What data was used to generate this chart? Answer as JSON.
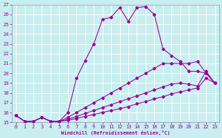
{
  "xlabel": "Windchill (Refroidissement éolien,°C)",
  "bg_color": "#c8eef0",
  "line_color": "#990099",
  "grid_color": "#ffffff",
  "xlim": [
    -0.5,
    23.5
  ],
  "ylim": [
    15,
    27
  ],
  "xticks": [
    0,
    1,
    2,
    3,
    4,
    5,
    6,
    7,
    8,
    9,
    10,
    11,
    12,
    13,
    14,
    15,
    16,
    17,
    18,
    19,
    20,
    21,
    22,
    23
  ],
  "yticks": [
    15,
    16,
    17,
    18,
    19,
    20,
    21,
    22,
    23,
    24,
    25,
    26,
    27
  ],
  "lines": [
    {
      "x": [
        0,
        1,
        2,
        3,
        4,
        5,
        6,
        7,
        8,
        9,
        10,
        11,
        12,
        13,
        14,
        15,
        16,
        17,
        18,
        19,
        20,
        21,
        22,
        23
      ],
      "y": [
        15.7,
        15.1,
        15.1,
        15.5,
        15.1,
        15.1,
        16.0,
        19.5,
        21.3,
        23.0,
        25.5,
        25.7,
        26.7,
        25.3,
        26.7,
        26.8,
        26.0,
        22.5,
        21.8,
        21.2,
        20.2,
        20.2,
        20.0,
        19.0
      ]
    },
    {
      "x": [
        0,
        1,
        2,
        3,
        4,
        5,
        6,
        7,
        8,
        9,
        10,
        11,
        12,
        13,
        14,
        15,
        16,
        17,
        18,
        19,
        20,
        21,
        22,
        23
      ],
      "y": [
        15.7,
        15.1,
        15.1,
        15.5,
        15.1,
        15.1,
        15.5,
        16.0,
        16.5,
        17.0,
        17.5,
        18.0,
        18.5,
        19.0,
        19.5,
        20.0,
        20.5,
        21.0,
        21.0,
        21.0,
        21.0,
        21.2,
        20.0,
        19.0
      ]
    },
    {
      "x": [
        0,
        1,
        2,
        3,
        4,
        5,
        6,
        7,
        8,
        9,
        10,
        11,
        12,
        13,
        14,
        15,
        16,
        17,
        18,
        19,
        20,
        21,
        22,
        23
      ],
      "y": [
        15.7,
        15.1,
        15.1,
        15.5,
        15.1,
        15.1,
        15.3,
        15.6,
        15.9,
        16.2,
        16.5,
        16.8,
        17.1,
        17.4,
        17.7,
        18.0,
        18.3,
        18.6,
        18.9,
        19.0,
        18.9,
        18.7,
        20.2,
        19.0
      ]
    },
    {
      "x": [
        0,
        1,
        2,
        3,
        4,
        5,
        6,
        7,
        8,
        9,
        10,
        11,
        12,
        13,
        14,
        15,
        16,
        17,
        18,
        19,
        20,
        21,
        22,
        23
      ],
      "y": [
        15.7,
        15.1,
        15.1,
        15.5,
        15.1,
        15.1,
        15.2,
        15.4,
        15.6,
        15.8,
        16.0,
        16.2,
        16.4,
        16.6,
        16.9,
        17.1,
        17.4,
        17.6,
        17.9,
        18.1,
        18.3,
        18.5,
        19.5,
        19.0
      ]
    }
  ]
}
